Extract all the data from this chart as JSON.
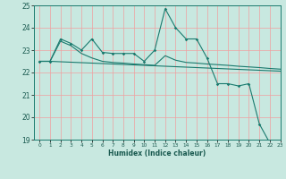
{
  "title": "",
  "xlabel": "Humidex (Indice chaleur)",
  "xlim": [
    -0.5,
    23
  ],
  "ylim": [
    19,
    25
  ],
  "xticks": [
    0,
    1,
    2,
    3,
    4,
    5,
    6,
    7,
    8,
    9,
    10,
    11,
    12,
    13,
    14,
    15,
    16,
    17,
    18,
    19,
    20,
    21,
    22,
    23
  ],
  "yticks": [
    19,
    20,
    21,
    22,
    23,
    24,
    25
  ],
  "bg_color": "#c8e8e0",
  "grid_color": "#f0a0a0",
  "line_color": "#1a7a6e",
  "line1_x": [
    0,
    1,
    2,
    3,
    4,
    5,
    6,
    7,
    8,
    9,
    10,
    11,
    12,
    13,
    14,
    15,
    16,
    17,
    18,
    19,
    20,
    21,
    22,
    23
  ],
  "line1_y": [
    22.5,
    22.5,
    23.5,
    23.3,
    23.0,
    23.5,
    22.9,
    22.85,
    22.85,
    22.85,
    22.5,
    23.0,
    24.85,
    24.0,
    23.5,
    23.5,
    22.65,
    21.5,
    21.5,
    21.4,
    21.5,
    19.7,
    18.85,
    18.75
  ],
  "line2_x": [
    0,
    1,
    2,
    3,
    4,
    5,
    6,
    7,
    8,
    9,
    10,
    11,
    12,
    13,
    14,
    15,
    16,
    17,
    18,
    19,
    20,
    21,
    22,
    23
  ],
  "line2_y": [
    22.5,
    22.5,
    22.48,
    22.46,
    22.44,
    22.42,
    22.4,
    22.38,
    22.36,
    22.34,
    22.32,
    22.3,
    22.28,
    22.26,
    22.24,
    22.22,
    22.2,
    22.18,
    22.16,
    22.14,
    22.12,
    22.1,
    22.08,
    22.06
  ],
  "line3_x": [
    0,
    1,
    2,
    3,
    4,
    5,
    6,
    7,
    8,
    9,
    10,
    11,
    12,
    13,
    14,
    15,
    16,
    17,
    18,
    19,
    20,
    21,
    22,
    23
  ],
  "line3_y": [
    22.5,
    22.5,
    23.4,
    23.2,
    22.85,
    22.65,
    22.5,
    22.45,
    22.42,
    22.38,
    22.35,
    22.32,
    22.75,
    22.55,
    22.45,
    22.42,
    22.38,
    22.35,
    22.32,
    22.28,
    22.25,
    22.22,
    22.18,
    22.15
  ]
}
